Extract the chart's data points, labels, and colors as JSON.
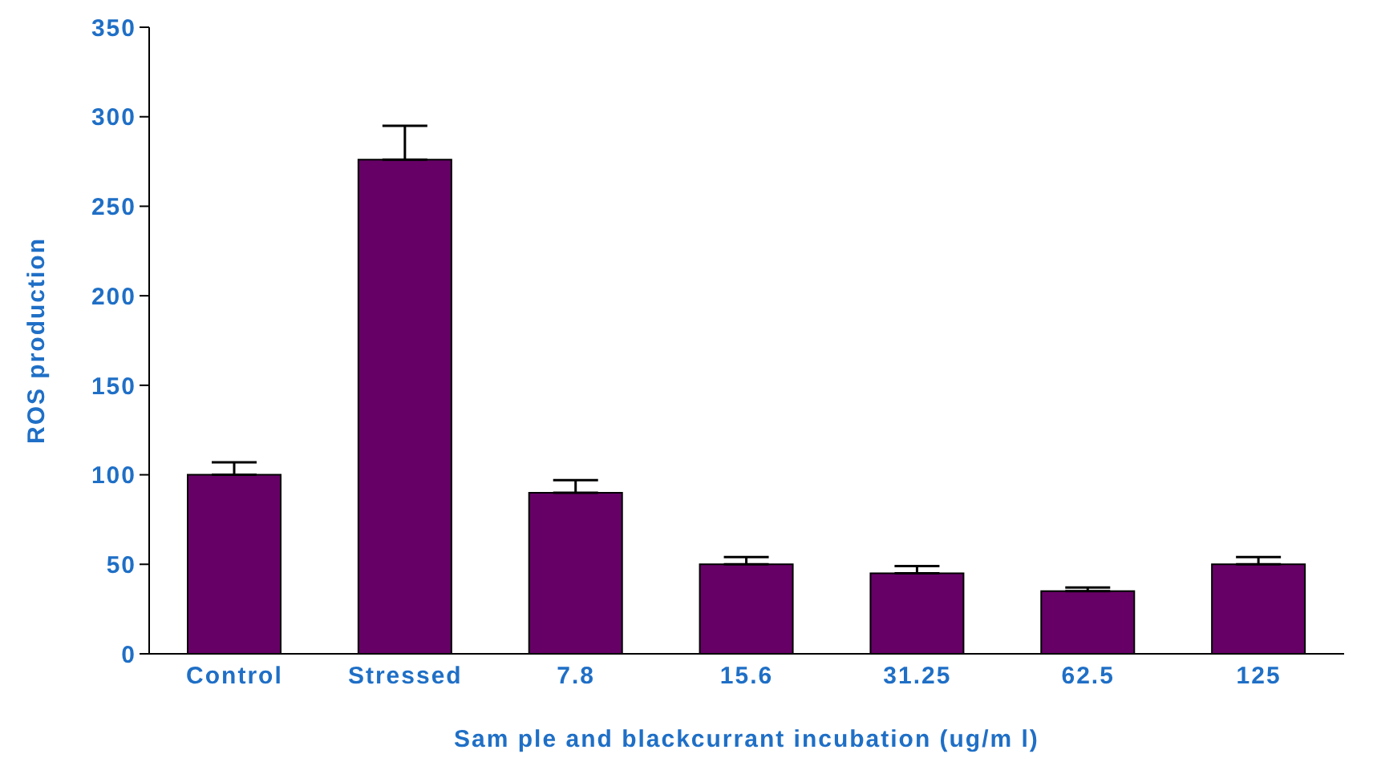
{
  "chart_data": {
    "type": "bar",
    "xlabel": "Sam ple and blackcurrant incubation (ug/m l)",
    "ylabel": "ROS production",
    "categories": [
      "Control",
      "Stressed",
      "7.8",
      "15.6",
      "31.25",
      "62.5",
      "125"
    ],
    "values": [
      100,
      276,
      90,
      50,
      45,
      35,
      50
    ],
    "errors": [
      [
        100,
        107
      ],
      [
        276,
        295
      ],
      [
        90,
        97
      ],
      [
        50,
        54
      ],
      [
        45,
        49
      ],
      [
        35,
        37
      ],
      [
        50,
        54
      ]
    ],
    "color": "#660066",
    "ylim": [
      0,
      350
    ],
    "yticks": [
      0,
      50,
      100,
      150,
      200,
      250,
      300,
      350
    ],
    "grid": false,
    "legend": false
  }
}
